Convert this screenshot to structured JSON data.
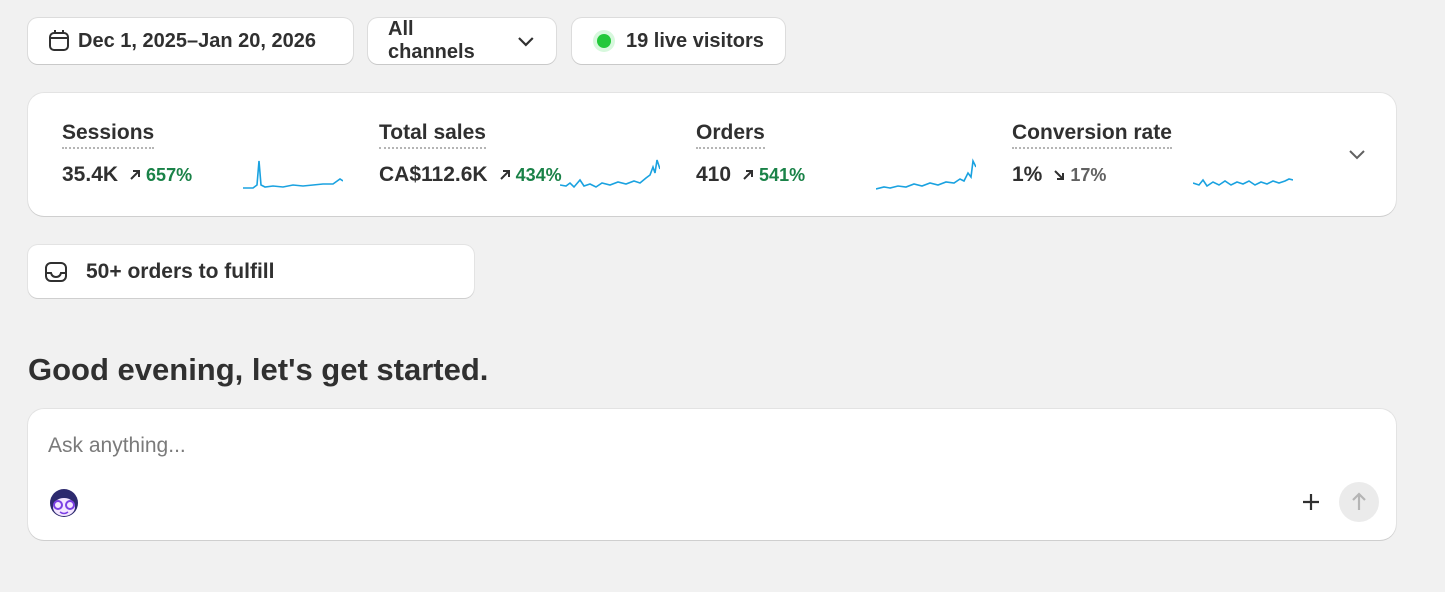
{
  "toolbar": {
    "date_range": "Dec 1, 2025–Jan 20, 2026",
    "channel": "All channels",
    "live_visitors": "19 live visitors"
  },
  "metrics": [
    {
      "label": "Sessions",
      "value": "35.4K",
      "change": "657%"
    },
    {
      "label": "Total sales",
      "value": "CA$112.6K",
      "change": "434%"
    },
    {
      "label": "Orders",
      "value": "410",
      "change": "541%"
    },
    {
      "label": "Conversion rate",
      "value": "1%",
      "change": "17%"
    }
  ],
  "task": "50+ orders to fulfill",
  "greeting": "Good evening, let's get started.",
  "prompt": {
    "placeholder": "Ask anything..."
  }
}
